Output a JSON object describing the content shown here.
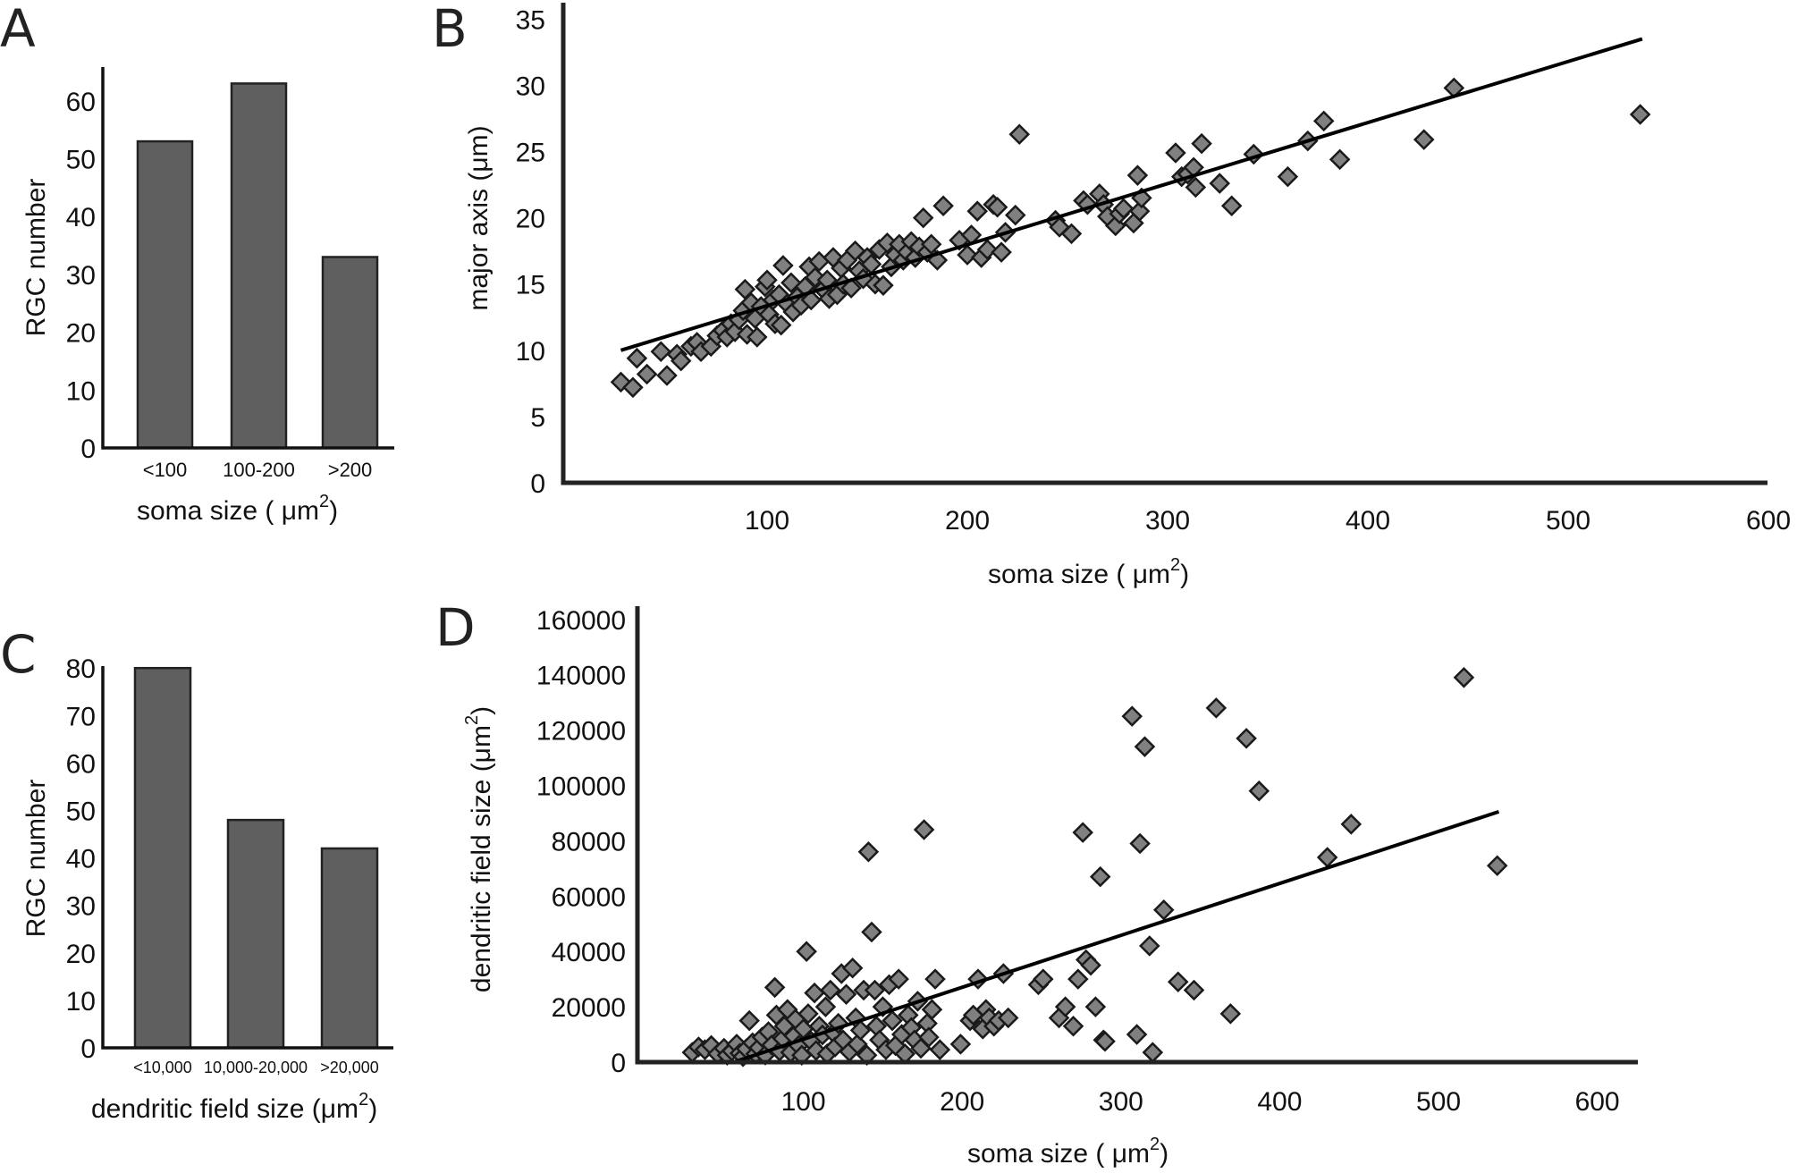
{
  "chart_data": [
    {
      "panel": "A",
      "type": "bar",
      "title": "",
      "xlabel": "soma size (μm²)",
      "ylabel": "RGC number",
      "categories": [
        "<100",
        "100-200",
        ">200"
      ],
      "values": [
        53,
        63,
        33
      ],
      "ylim": [
        0,
        65
      ],
      "yticks": [
        0,
        10,
        20,
        30,
        40,
        50,
        60
      ],
      "grid": false
    },
    {
      "panel": "B",
      "type": "scatter",
      "title": "",
      "xlabel": "soma size (μm²)",
      "ylabel": "major axis (μm)",
      "xlim": [
        0,
        600
      ],
      "ylim": [
        0,
        35
      ],
      "xticks": [
        100,
        200,
        300,
        400,
        500,
        600
      ],
      "yticks": [
        0,
        5,
        10,
        15,
        20,
        25,
        30,
        35
      ],
      "grid": false,
      "fit_line": {
        "x": [
          27,
          537
        ],
        "y": [
          10.0,
          33.5
        ]
      },
      "points": [
        [
          27,
          7.6
        ],
        [
          33,
          7.2
        ],
        [
          35,
          9.4
        ],
        [
          40,
          8.2
        ],
        [
          47,
          9.9
        ],
        [
          50,
          8.1
        ],
        [
          55,
          9.7
        ],
        [
          57,
          9.2
        ],
        [
          62,
          10.3
        ],
        [
          65,
          10.6
        ],
        [
          67,
          9.9
        ],
        [
          72,
          10.3
        ],
        [
          75,
          11.1
        ],
        [
          78,
          11.5
        ],
        [
          80,
          11.0
        ],
        [
          82,
          12.0
        ],
        [
          84,
          11.4
        ],
        [
          86,
          12.3
        ],
        [
          88,
          13.0
        ],
        [
          89,
          14.6
        ],
        [
          90,
          11.2
        ],
        [
          92,
          13.6
        ],
        [
          94,
          12.4
        ],
        [
          95,
          11.0
        ],
        [
          97,
          13.3
        ],
        [
          99,
          14.8
        ],
        [
          100,
          15.3
        ],
        [
          101,
          12.7
        ],
        [
          103,
          13.8
        ],
        [
          104,
          12.0
        ],
        [
          106,
          14.2
        ],
        [
          107,
          11.9
        ],
        [
          108,
          16.4
        ],
        [
          110,
          13.5
        ],
        [
          112,
          15.1
        ],
        [
          113,
          12.9
        ],
        [
          115,
          14.0
        ],
        [
          117,
          13.4
        ],
        [
          119,
          14.8
        ],
        [
          121,
          16.3
        ],
        [
          122,
          13.8
        ],
        [
          124,
          15.5
        ],
        [
          126,
          16.7
        ],
        [
          128,
          14.6
        ],
        [
          130,
          15.3
        ],
        [
          131,
          13.9
        ],
        [
          133,
          17.0
        ],
        [
          135,
          14.2
        ],
        [
          137,
          16.2
        ],
        [
          138,
          15.0
        ],
        [
          140,
          16.8
        ],
        [
          142,
          14.7
        ],
        [
          144,
          17.5
        ],
        [
          146,
          16.0
        ],
        [
          148,
          15.4
        ],
        [
          150,
          17.0
        ],
        [
          152,
          16.5
        ],
        [
          154,
          15.0
        ],
        [
          156,
          17.6
        ],
        [
          158,
          14.9
        ],
        [
          160,
          18.1
        ],
        [
          162,
          16.3
        ],
        [
          164,
          17.2
        ],
        [
          166,
          18.0
        ],
        [
          168,
          16.8
        ],
        [
          170,
          17.4
        ],
        [
          172,
          18.2
        ],
        [
          174,
          17.0
        ],
        [
          176,
          17.8
        ],
        [
          178,
          20.0
        ],
        [
          180,
          17.4
        ],
        [
          182,
          18.0
        ],
        [
          185,
          16.8
        ],
        [
          188,
          20.9
        ],
        [
          196,
          18.3
        ],
        [
          200,
          17.2
        ],
        [
          202,
          18.7
        ],
        [
          205,
          20.5
        ],
        [
          207,
          17.0
        ],
        [
          210,
          17.6
        ],
        [
          213,
          21.0
        ],
        [
          215,
          20.8
        ],
        [
          217,
          17.4
        ],
        [
          219,
          18.9
        ],
        [
          224,
          20.2
        ],
        [
          226,
          26.3
        ],
        [
          244,
          19.8
        ],
        [
          246,
          19.3
        ],
        [
          252,
          18.8
        ],
        [
          258,
          21.3
        ],
        [
          260,
          21.0
        ],
        [
          266,
          21.8
        ],
        [
          268,
          21.0
        ],
        [
          270,
          20.1
        ],
        [
          274,
          19.4
        ],
        [
          276,
          20.3
        ],
        [
          278,
          20.7
        ],
        [
          283,
          19.6
        ],
        [
          285,
          23.2
        ],
        [
          286,
          20.5
        ],
        [
          287,
          21.5
        ],
        [
          304,
          24.9
        ],
        [
          307,
          23.1
        ],
        [
          310,
          23.3
        ],
        [
          313,
          23.8
        ],
        [
          314,
          22.3
        ],
        [
          317,
          25.6
        ],
        [
          326,
          22.6
        ],
        [
          332,
          20.9
        ],
        [
          343,
          24.8
        ],
        [
          360,
          23.1
        ],
        [
          370,
          25.8
        ],
        [
          378,
          27.3
        ],
        [
          386,
          24.4
        ],
        [
          428,
          25.9
        ],
        [
          443,
          29.8
        ],
        [
          536,
          27.8
        ]
      ]
    },
    {
      "panel": "C",
      "type": "bar",
      "title": "",
      "xlabel": "dendritic field size (μm²)",
      "ylabel": "RGC number",
      "categories": [
        "<10,000",
        "10,000-20,000",
        ">20,000"
      ],
      "values": [
        80,
        48,
        42
      ],
      "ylim": [
        0,
        80
      ],
      "yticks": [
        0,
        10,
        20,
        30,
        40,
        50,
        60,
        70,
        80
      ],
      "grid": false
    },
    {
      "panel": "D",
      "type": "scatter",
      "title": "",
      "xlabel": "soma size (μm²)",
      "ylabel": "dendritic field size (μm²)",
      "xlim": [
        0,
        600
      ],
      "ylim": [
        0,
        160000
      ],
      "xticks": [
        100,
        200,
        300,
        400,
        500,
        600
      ],
      "yticks": [
        0,
        20000,
        40000,
        60000,
        80000,
        100000,
        120000,
        140000,
        160000
      ],
      "grid": false,
      "fit_line": {
        "x": [
          56,
          538
        ],
        "y": [
          0,
          90500
        ]
      },
      "points": [
        [
          30,
          3500
        ],
        [
          34,
          5500
        ],
        [
          38,
          4500
        ],
        [
          42,
          6000
        ],
        [
          46,
          3000
        ],
        [
          50,
          5000
        ],
        [
          52,
          2500
        ],
        [
          55,
          4000
        ],
        [
          58,
          6500
        ],
        [
          60,
          3200
        ],
        [
          62,
          2000
        ],
        [
          64,
          4800
        ],
        [
          66,
          15000
        ],
        [
          68,
          7000
        ],
        [
          70,
          3000
        ],
        [
          72,
          5200
        ],
        [
          74,
          9000
        ],
        [
          76,
          2600
        ],
        [
          78,
          11000
        ],
        [
          80,
          6200
        ],
        [
          82,
          27000
        ],
        [
          83,
          17000
        ],
        [
          85,
          4000
        ],
        [
          87,
          8500
        ],
        [
          88,
          13000
        ],
        [
          90,
          19000
        ],
        [
          92,
          3500
        ],
        [
          94,
          9500
        ],
        [
          95,
          15500
        ],
        [
          97,
          6000
        ],
        [
          99,
          2500
        ],
        [
          100,
          12000
        ],
        [
          102,
          40000
        ],
        [
          103,
          17500
        ],
        [
          105,
          7500
        ],
        [
          107,
          25000
        ],
        [
          108,
          4200
        ],
        [
          110,
          13000
        ],
        [
          112,
          9800
        ],
        [
          114,
          20000
        ],
        [
          115,
          3000
        ],
        [
          117,
          26000
        ],
        [
          119,
          10500
        ],
        [
          120,
          5500
        ],
        [
          122,
          14000
        ],
        [
          124,
          32000
        ],
        [
          125,
          8000
        ],
        [
          127,
          24500
        ],
        [
          129,
          3800
        ],
        [
          131,
          34000
        ],
        [
          133,
          16000
        ],
        [
          134,
          6500
        ],
        [
          136,
          11500
        ],
        [
          138,
          26000
        ],
        [
          140,
          2500
        ],
        [
          141,
          76000
        ],
        [
          143,
          47000
        ],
        [
          145,
          26000
        ],
        [
          146,
          13000
        ],
        [
          148,
          8000
        ],
        [
          150,
          20000
        ],
        [
          152,
          4500
        ],
        [
          154,
          28000
        ],
        [
          156,
          15000
        ],
        [
          158,
          6000
        ],
        [
          160,
          30000
        ],
        [
          162,
          10000
        ],
        [
          164,
          3000
        ],
        [
          166,
          17000
        ],
        [
          168,
          12500
        ],
        [
          170,
          8000
        ],
        [
          172,
          22000
        ],
        [
          174,
          5000
        ],
        [
          176,
          84000
        ],
        [
          178,
          14000
        ],
        [
          179,
          9000
        ],
        [
          181,
          19000
        ],
        [
          183,
          30000
        ],
        [
          186,
          4500
        ],
        [
          199,
          6500
        ],
        [
          205,
          15000
        ],
        [
          207,
          17000
        ],
        [
          210,
          30000
        ],
        [
          213,
          12000
        ],
        [
          215,
          19000
        ],
        [
          217,
          16000
        ],
        [
          220,
          13000
        ],
        [
          223,
          15000
        ],
        [
          226,
          32000
        ],
        [
          229,
          16000
        ],
        [
          248,
          28000
        ],
        [
          251,
          30000
        ],
        [
          261,
          16000
        ],
        [
          265,
          20000
        ],
        [
          270,
          13000
        ],
        [
          273,
          30000
        ],
        [
          276,
          83000
        ],
        [
          278,
          37000
        ],
        [
          281,
          35000
        ],
        [
          284,
          20000
        ],
        [
          287,
          67000
        ],
        [
          289,
          8000
        ],
        [
          290,
          7500
        ],
        [
          307,
          125000
        ],
        [
          310,
          10000
        ],
        [
          312,
          79000
        ],
        [
          315,
          114000
        ],
        [
          318,
          42000
        ],
        [
          320,
          3500
        ],
        [
          327,
          55000
        ],
        [
          336,
          29000
        ],
        [
          346,
          26000
        ],
        [
          360,
          128000
        ],
        [
          369,
          17500
        ],
        [
          379,
          117000
        ],
        [
          387,
          98000
        ],
        [
          430,
          74000
        ],
        [
          445,
          86000
        ],
        [
          516,
          139000
        ],
        [
          537,
          71000
        ]
      ]
    }
  ],
  "panels": {
    "A": {
      "letter": "A",
      "ylabel": "RGC number",
      "xlabel_text": "soma size ( μm",
      "xlabel_sup": "2",
      "xlabel_close": ")"
    },
    "B": {
      "letter": "B",
      "ylabel": "major axis (μm)",
      "xlabel_text": "soma size ( μm",
      "xlabel_sup": "2",
      "xlabel_close": ")"
    },
    "C": {
      "letter": "C",
      "ylabel": "RGC number",
      "xlabel_text": "dendritic field size (μm",
      "xlabel_sup": "2",
      "xlabel_close": ")"
    },
    "D": {
      "letter": "D",
      "ylabel_text": "dendritic field size (μm",
      "ylabel_sup": "2",
      "ylabel_close": ")",
      "xlabel_text": "soma size ( μm",
      "xlabel_sup": "2",
      "xlabel_close": ")"
    }
  }
}
